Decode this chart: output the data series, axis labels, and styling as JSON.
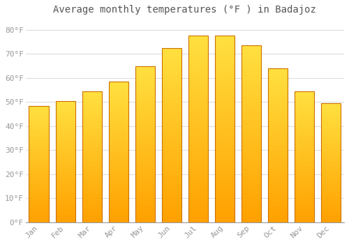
{
  "title": "Average monthly temperatures (°F ) in Badajoz",
  "months": [
    "Jan",
    "Feb",
    "Mar",
    "Apr",
    "May",
    "Jun",
    "Jul",
    "Aug",
    "Sep",
    "Oct",
    "Nov",
    "Dec"
  ],
  "values": [
    48.5,
    50.5,
    54.5,
    58.5,
    65.0,
    72.5,
    77.5,
    77.5,
    73.5,
    64.0,
    54.5,
    49.5
  ],
  "bar_color_top": "#FFD040",
  "bar_color_bottom": "#FFA500",
  "bar_edge_color": "#CC7000",
  "background_color": "#FFFFFF",
  "plot_bg_color": "#FFFFFF",
  "grid_color": "#DDDDDD",
  "ylim": [
    0,
    84
  ],
  "ytick_values": [
    0,
    10,
    20,
    30,
    40,
    50,
    60,
    70,
    80
  ],
  "title_fontsize": 10,
  "tick_fontsize": 8,
  "tick_color": "#999999",
  "axis_color": "#999999",
  "title_color": "#555555"
}
